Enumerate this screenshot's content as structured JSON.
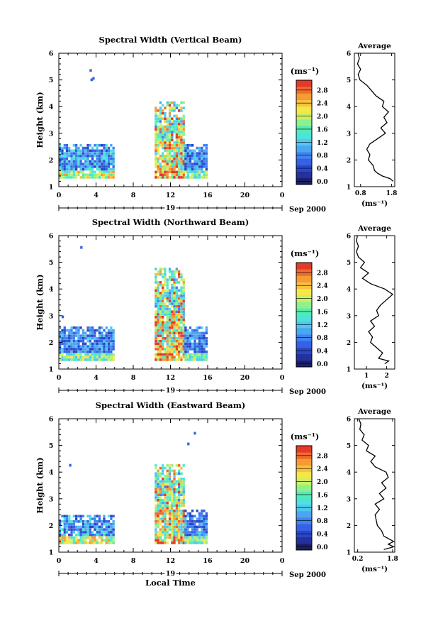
{
  "figure": {
    "xlabel": "Local Time",
    "date_day": "19",
    "date_label": "Sep 2000"
  },
  "chart_data": [
    {
      "type": "heatmap",
      "title": "Spectral Width (Vertical Beam)",
      "xlabel": "Local Time",
      "ylabel": "Height (km)",
      "x_ticks": [
        "0",
        "4",
        "8",
        "12",
        "16",
        "20",
        "0"
      ],
      "xlim": [
        0,
        24
      ],
      "y_ticks": [
        "1",
        "2",
        "3",
        "4",
        "5",
        "6"
      ],
      "ylim": [
        1,
        6
      ],
      "colorbar": {
        "unit": "(ms⁻¹)",
        "ticks": [
          "0.0",
          "0.4",
          "0.8",
          "1.2",
          "1.6",
          "2.0",
          "2.4",
          "2.8"
        ],
        "range": [
          0,
          3.2
        ]
      },
      "blocks": [
        {
          "t": [
            0,
            5.8
          ],
          "h": [
            1.3,
            2.6
          ],
          "level": "low-high"
        },
        {
          "t": [
            10.3,
            13.5
          ],
          "h": [
            1.3,
            4.2
          ],
          "level": "high"
        },
        {
          "t": [
            13.5,
            15.8
          ],
          "h": [
            1.3,
            2.6
          ],
          "level": "low"
        }
      ],
      "profile": {
        "title": "Average",
        "xlabel": "(ms⁻¹)",
        "x_ticks": [
          "0.8",
          "1.8"
        ],
        "xlim": [
          0.6,
          1.9
        ],
        "heights": [
          1.2,
          1.3,
          1.4,
          1.5,
          1.6,
          1.8,
          2.0,
          2.2,
          2.4,
          2.6,
          2.8,
          3.0,
          3.2,
          3.4,
          3.6,
          3.8,
          4.0,
          4.2,
          4.4,
          4.6,
          4.8,
          5.0,
          5.2,
          5.4,
          5.6,
          5.8,
          6.0
        ],
        "values": [
          1.85,
          1.75,
          1.5,
          1.35,
          1.25,
          1.2,
          1.05,
          1.1,
          1.0,
          1.1,
          1.35,
          1.6,
          1.45,
          1.65,
          1.55,
          1.7,
          1.5,
          1.55,
          1.3,
          1.15,
          1.0,
          0.78,
          0.72,
          0.8,
          0.7,
          0.76,
          0.72
        ]
      }
    },
    {
      "type": "heatmap",
      "title": "Spectral Width (Northward Beam)",
      "xlabel": "Local Time",
      "ylabel": "Height (km)",
      "x_ticks": [
        "0",
        "4",
        "8",
        "12",
        "16",
        "20",
        "0"
      ],
      "xlim": [
        0,
        24
      ],
      "y_ticks": [
        "1",
        "2",
        "3",
        "4",
        "5",
        "6"
      ],
      "ylim": [
        1,
        6
      ],
      "colorbar": {
        "unit": "(ms⁻¹)",
        "ticks": [
          "0.0",
          "0.4",
          "0.8",
          "1.2",
          "1.6",
          "2.0",
          "2.4",
          "2.8"
        ],
        "range": [
          0,
          3.2
        ]
      },
      "blocks": [
        {
          "t": [
            0,
            5.8
          ],
          "h": [
            1.3,
            2.6
          ],
          "level": "low"
        },
        {
          "t": [
            10.3,
            13.5
          ],
          "h": [
            1.3,
            4.7
          ],
          "level": "high"
        },
        {
          "t": [
            13.5,
            15.8
          ],
          "h": [
            1.3,
            2.6
          ],
          "level": "low"
        }
      ],
      "profile": {
        "title": "Average",
        "xlabel": "(ms⁻¹)",
        "x_ticks": [
          "1",
          "2"
        ],
        "xlim": [
          0.4,
          2.4
        ],
        "heights": [
          1.2,
          1.3,
          1.4,
          1.6,
          1.8,
          2.0,
          2.2,
          2.4,
          2.6,
          2.8,
          3.0,
          3.2,
          3.4,
          3.6,
          3.8,
          4.0,
          4.2,
          4.4,
          4.6,
          4.8,
          5.0,
          5.2,
          5.4,
          5.6,
          5.8,
          6.0
        ],
        "values": [
          1.9,
          2.1,
          1.6,
          1.8,
          1.5,
          1.2,
          1.3,
          1.1,
          1.4,
          1.2,
          1.6,
          1.5,
          1.7,
          2.0,
          2.3,
          1.9,
          1.2,
          0.8,
          1.1,
          0.7,
          0.9,
          0.6,
          0.5,
          0.6,
          0.5,
          0.55
        ]
      }
    },
    {
      "type": "heatmap",
      "title": "Spectral Width (Eastward Beam)",
      "xlabel": "Local Time",
      "ylabel": "Height (km)",
      "x_ticks": [
        "0",
        "4",
        "8",
        "12",
        "16",
        "20",
        "0"
      ],
      "xlim": [
        0,
        24
      ],
      "y_ticks": [
        "1",
        "2",
        "3",
        "4",
        "5",
        "6"
      ],
      "ylim": [
        1,
        6
      ],
      "colorbar": {
        "unit": "(ms⁻¹)",
        "ticks": [
          "0.0",
          "0.4",
          "0.8",
          "1.2",
          "1.6",
          "2.0",
          "2.4",
          "2.8"
        ],
        "range": [
          0,
          3.2
        ]
      },
      "blocks": [
        {
          "t": [
            0,
            5.8
          ],
          "h": [
            1.3,
            2.4
          ],
          "level": "low-high"
        },
        {
          "t": [
            10.3,
            13.5
          ],
          "h": [
            1.3,
            4.3
          ],
          "level": "high"
        },
        {
          "t": [
            13.5,
            15.8
          ],
          "h": [
            1.3,
            2.6
          ],
          "level": "low"
        }
      ],
      "profile": {
        "title": "Average",
        "xlabel": "(ms⁻¹)",
        "x_ticks": [
          "0.2",
          "1.8"
        ],
        "xlim": [
          0.05,
          1.9
        ],
        "heights": [
          1.1,
          1.2,
          1.3,
          1.4,
          1.6,
          1.8,
          2.0,
          2.2,
          2.4,
          2.6,
          2.8,
          3.0,
          3.2,
          3.4,
          3.6,
          3.8,
          4.0,
          4.2,
          4.4,
          4.6,
          4.8,
          5.0,
          5.2,
          5.4,
          5.6,
          5.8,
          6.0
        ],
        "values": [
          1.4,
          1.85,
          1.6,
          1.85,
          1.4,
          1.3,
          1.1,
          1.05,
          1.0,
          1.2,
          1.0,
          1.4,
          1.2,
          1.5,
          1.3,
          1.6,
          1.5,
          1.0,
          0.8,
          1.0,
          0.6,
          0.7,
          0.4,
          0.5,
          0.3,
          0.35,
          0.25
        ]
      }
    }
  ]
}
